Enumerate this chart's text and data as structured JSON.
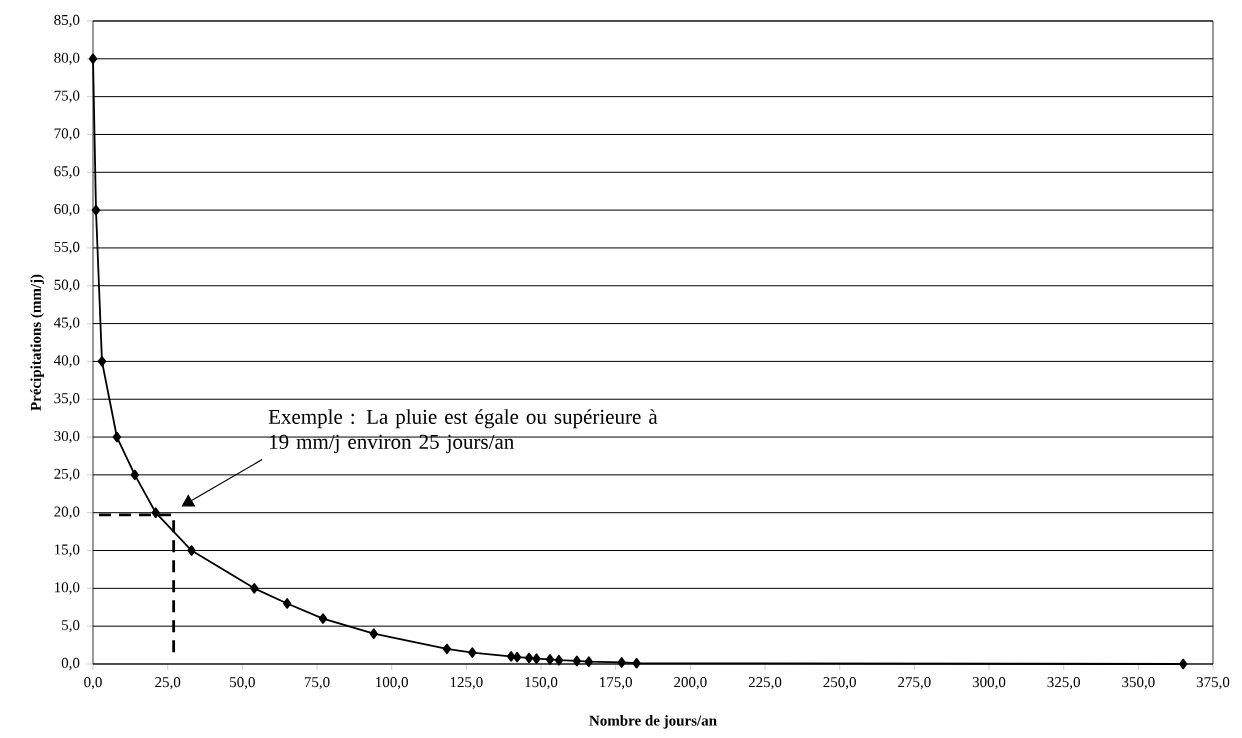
{
  "chart_data": {
    "type": "line",
    "xlabel": "Nombre de jours/an",
    "ylabel": "Précipitations (mm/j)",
    "series": [
      {
        "color": "#000000",
        "marker": "diamond",
        "line_style": "solid",
        "x": [
          0,
          1,
          3,
          8,
          14,
          21,
          33,
          54,
          65,
          77,
          94,
          118.5,
          127,
          140,
          142,
          146,
          148.5,
          153,
          156,
          162,
          166,
          177,
          182,
          365
        ],
        "values": [
          80,
          60,
          40,
          30,
          25,
          20,
          15,
          10,
          8,
          6,
          4,
          2,
          1.5,
          1.0,
          0.9,
          0.8,
          0.7,
          0.6,
          0.5,
          0.4,
          0.3,
          0.2,
          0.1,
          0.0
        ]
      },
      {
        "color": "#000000",
        "marker": "none",
        "line_style": "dashed",
        "x": [
          2,
          27,
          27
        ],
        "values": [
          19.7,
          19.7,
          0.5
        ]
      }
    ],
    "annotations": [
      "Exemple : La pluie est égale ou supérieure à 19 mm/j environ 25 jours/an"
    ],
    "xlim": [
      0,
      375
    ],
    "ylim": [
      0,
      85
    ],
    "xticks": [
      {
        "value": 0,
        "label": "0,0"
      },
      {
        "value": 25,
        "label": "25,0"
      },
      {
        "value": 50,
        "label": "50,0"
      },
      {
        "value": 75,
        "label": "75,0"
      },
      {
        "value": 100,
        "label": "100,0"
      },
      {
        "value": 125,
        "label": "125,0"
      },
      {
        "value": 150,
        "label": "150,0"
      },
      {
        "value": 175,
        "label": "175,0"
      },
      {
        "value": 200,
        "label": "200,0"
      },
      {
        "value": 225,
        "label": "225,0"
      },
      {
        "value": 250,
        "label": "250,0"
      },
      {
        "value": 275,
        "label": "275,0"
      },
      {
        "value": 300,
        "label": "300,0"
      },
      {
        "value": 325,
        "label": "325,0"
      },
      {
        "value": 350,
        "label": "350,0"
      },
      {
        "value": 375,
        "label": "375,0"
      }
    ],
    "yticks": [
      {
        "value": 0,
        "label": "0,0"
      },
      {
        "value": 5,
        "label": "5,0"
      },
      {
        "value": 10,
        "label": "10,0"
      },
      {
        "value": 15,
        "label": "15,0"
      },
      {
        "value": 20,
        "label": "20,0"
      },
      {
        "value": 25,
        "label": "25,0"
      },
      {
        "value": 30,
        "label": "30,0"
      },
      {
        "value": 35,
        "label": "35,0"
      },
      {
        "value": 40,
        "label": "40,0"
      },
      {
        "value": 45,
        "label": "45,0"
      },
      {
        "value": 50,
        "label": "50,0"
      },
      {
        "value": 55,
        "label": "55,0"
      },
      {
        "value": 60,
        "label": "60,0"
      },
      {
        "value": 65,
        "label": "65,0"
      },
      {
        "value": 70,
        "label": "70,0"
      },
      {
        "value": 75,
        "label": "75,0"
      },
      {
        "value": 80,
        "label": "80,0"
      },
      {
        "value": 85,
        "label": "85,0"
      }
    ],
    "grid": "y"
  }
}
